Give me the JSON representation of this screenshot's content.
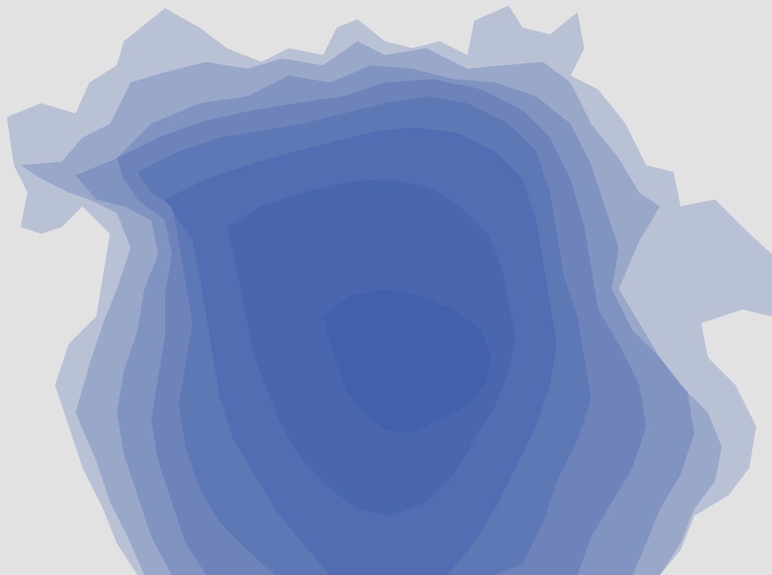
{
  "map": {
    "background_color": "#e2e2e2",
    "fill_color": "#2a4ea6",
    "layer_count": 8,
    "layer_opacity": 0.22,
    "visible_text": []
  }
}
